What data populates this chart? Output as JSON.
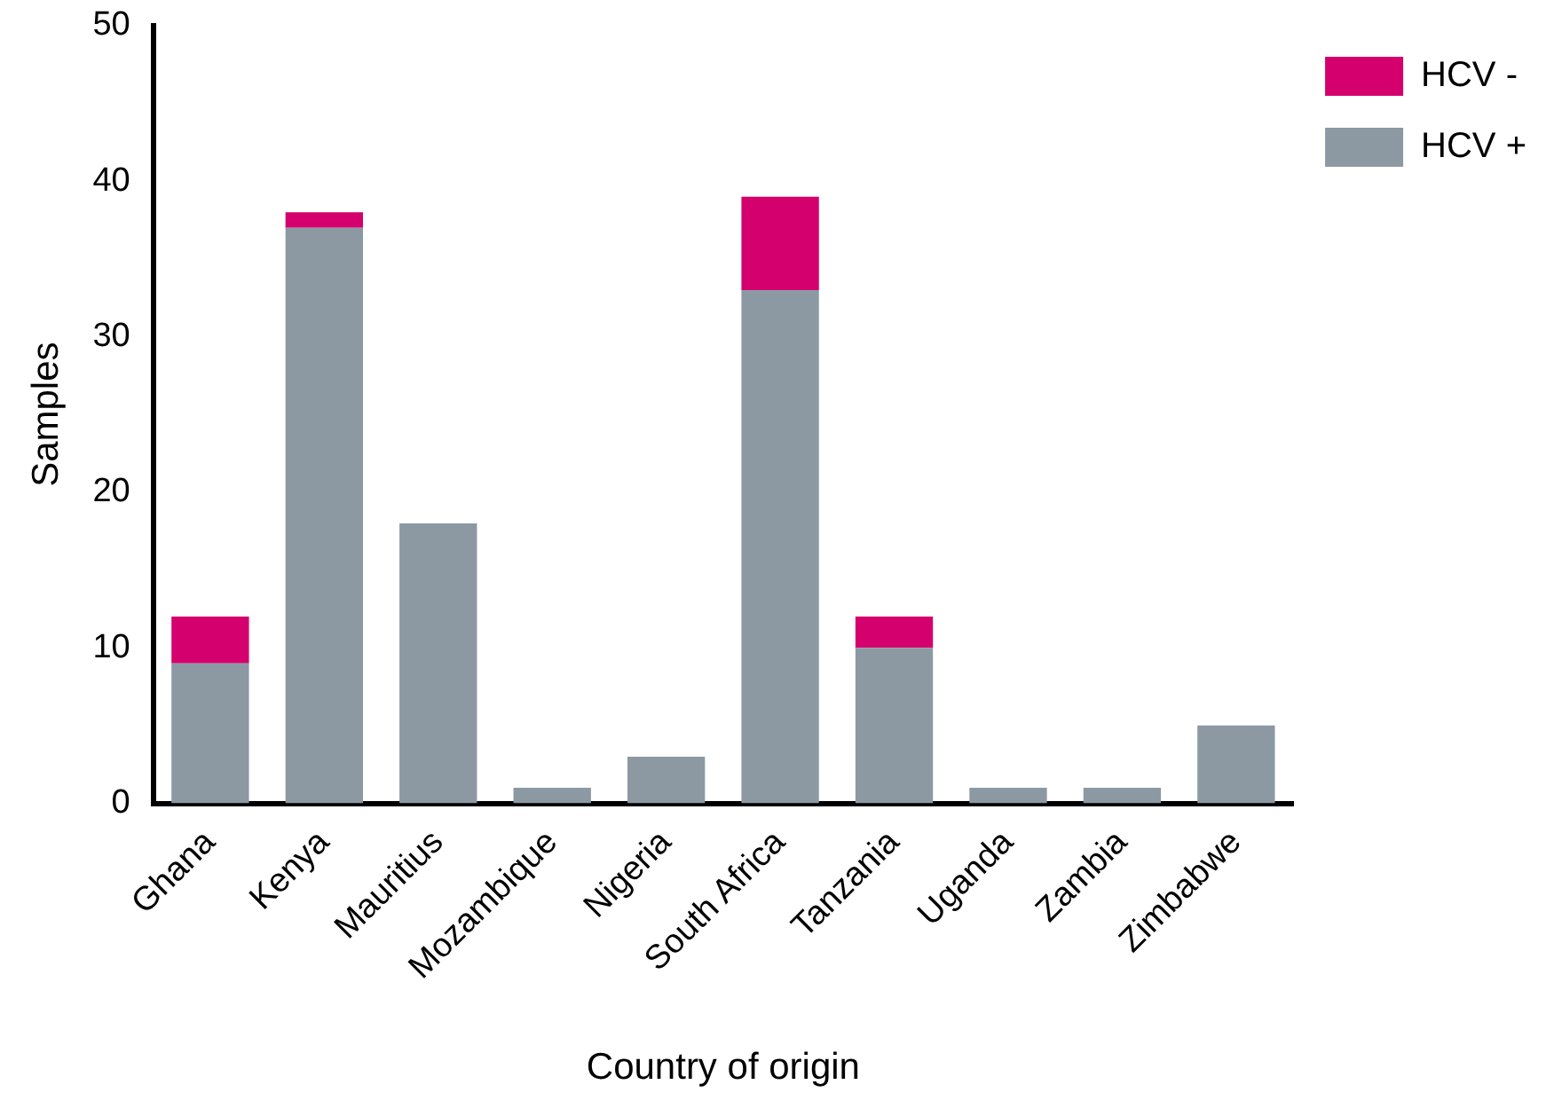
{
  "chart_data": {
    "type": "bar",
    "xlabel": "Country of origin",
    "ylabel": "Samples",
    "categories": [
      "Ghana",
      "Kenya",
      "Mauritius",
      "Mozambique",
      "Nigeria",
      "South Africa",
      "Tanzania",
      "Uganda",
      "Zambia",
      "Zimbabwe"
    ],
    "stacked": true,
    "ylim": [
      0,
      50
    ],
    "yticks": [
      0,
      10,
      20,
      30,
      40,
      50
    ],
    "grid": false,
    "legend": "top right",
    "series": [
      {
        "name": "HCV +",
        "color": "#8c99a3",
        "values": [
          9,
          37,
          18,
          1,
          3,
          33,
          10,
          1,
          1,
          5
        ]
      },
      {
        "name": "HCV -",
        "color": "#d4006e",
        "values": [
          3,
          1,
          0,
          0,
          0,
          6,
          2,
          0,
          0,
          0
        ]
      }
    ]
  }
}
